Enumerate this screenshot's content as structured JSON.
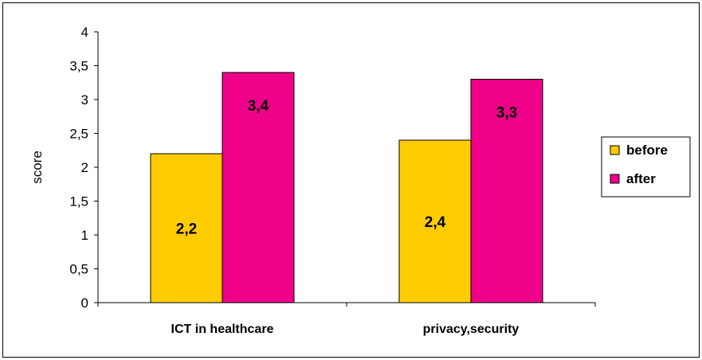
{
  "chart_data": {
    "type": "bar",
    "title": "",
    "xlabel": "",
    "ylabel": "score",
    "ylim": [
      0,
      4
    ],
    "yticks": [
      "0",
      "0,5",
      "1",
      "1,5",
      "2",
      "2,5",
      "3",
      "3,5",
      "4"
    ],
    "grid": false,
    "legend_position": "right",
    "categories": [
      "ICT in healthcare",
      "privacy,security"
    ],
    "series": [
      {
        "name": "before",
        "color": "#FFCC00",
        "values": [
          2.2,
          2.4
        ],
        "labels": [
          "2,2",
          "2,4"
        ]
      },
      {
        "name": "after",
        "color": "#EE0088",
        "values": [
          3.4,
          3.3
        ],
        "labels": [
          "3,4",
          "3,3"
        ]
      }
    ]
  }
}
